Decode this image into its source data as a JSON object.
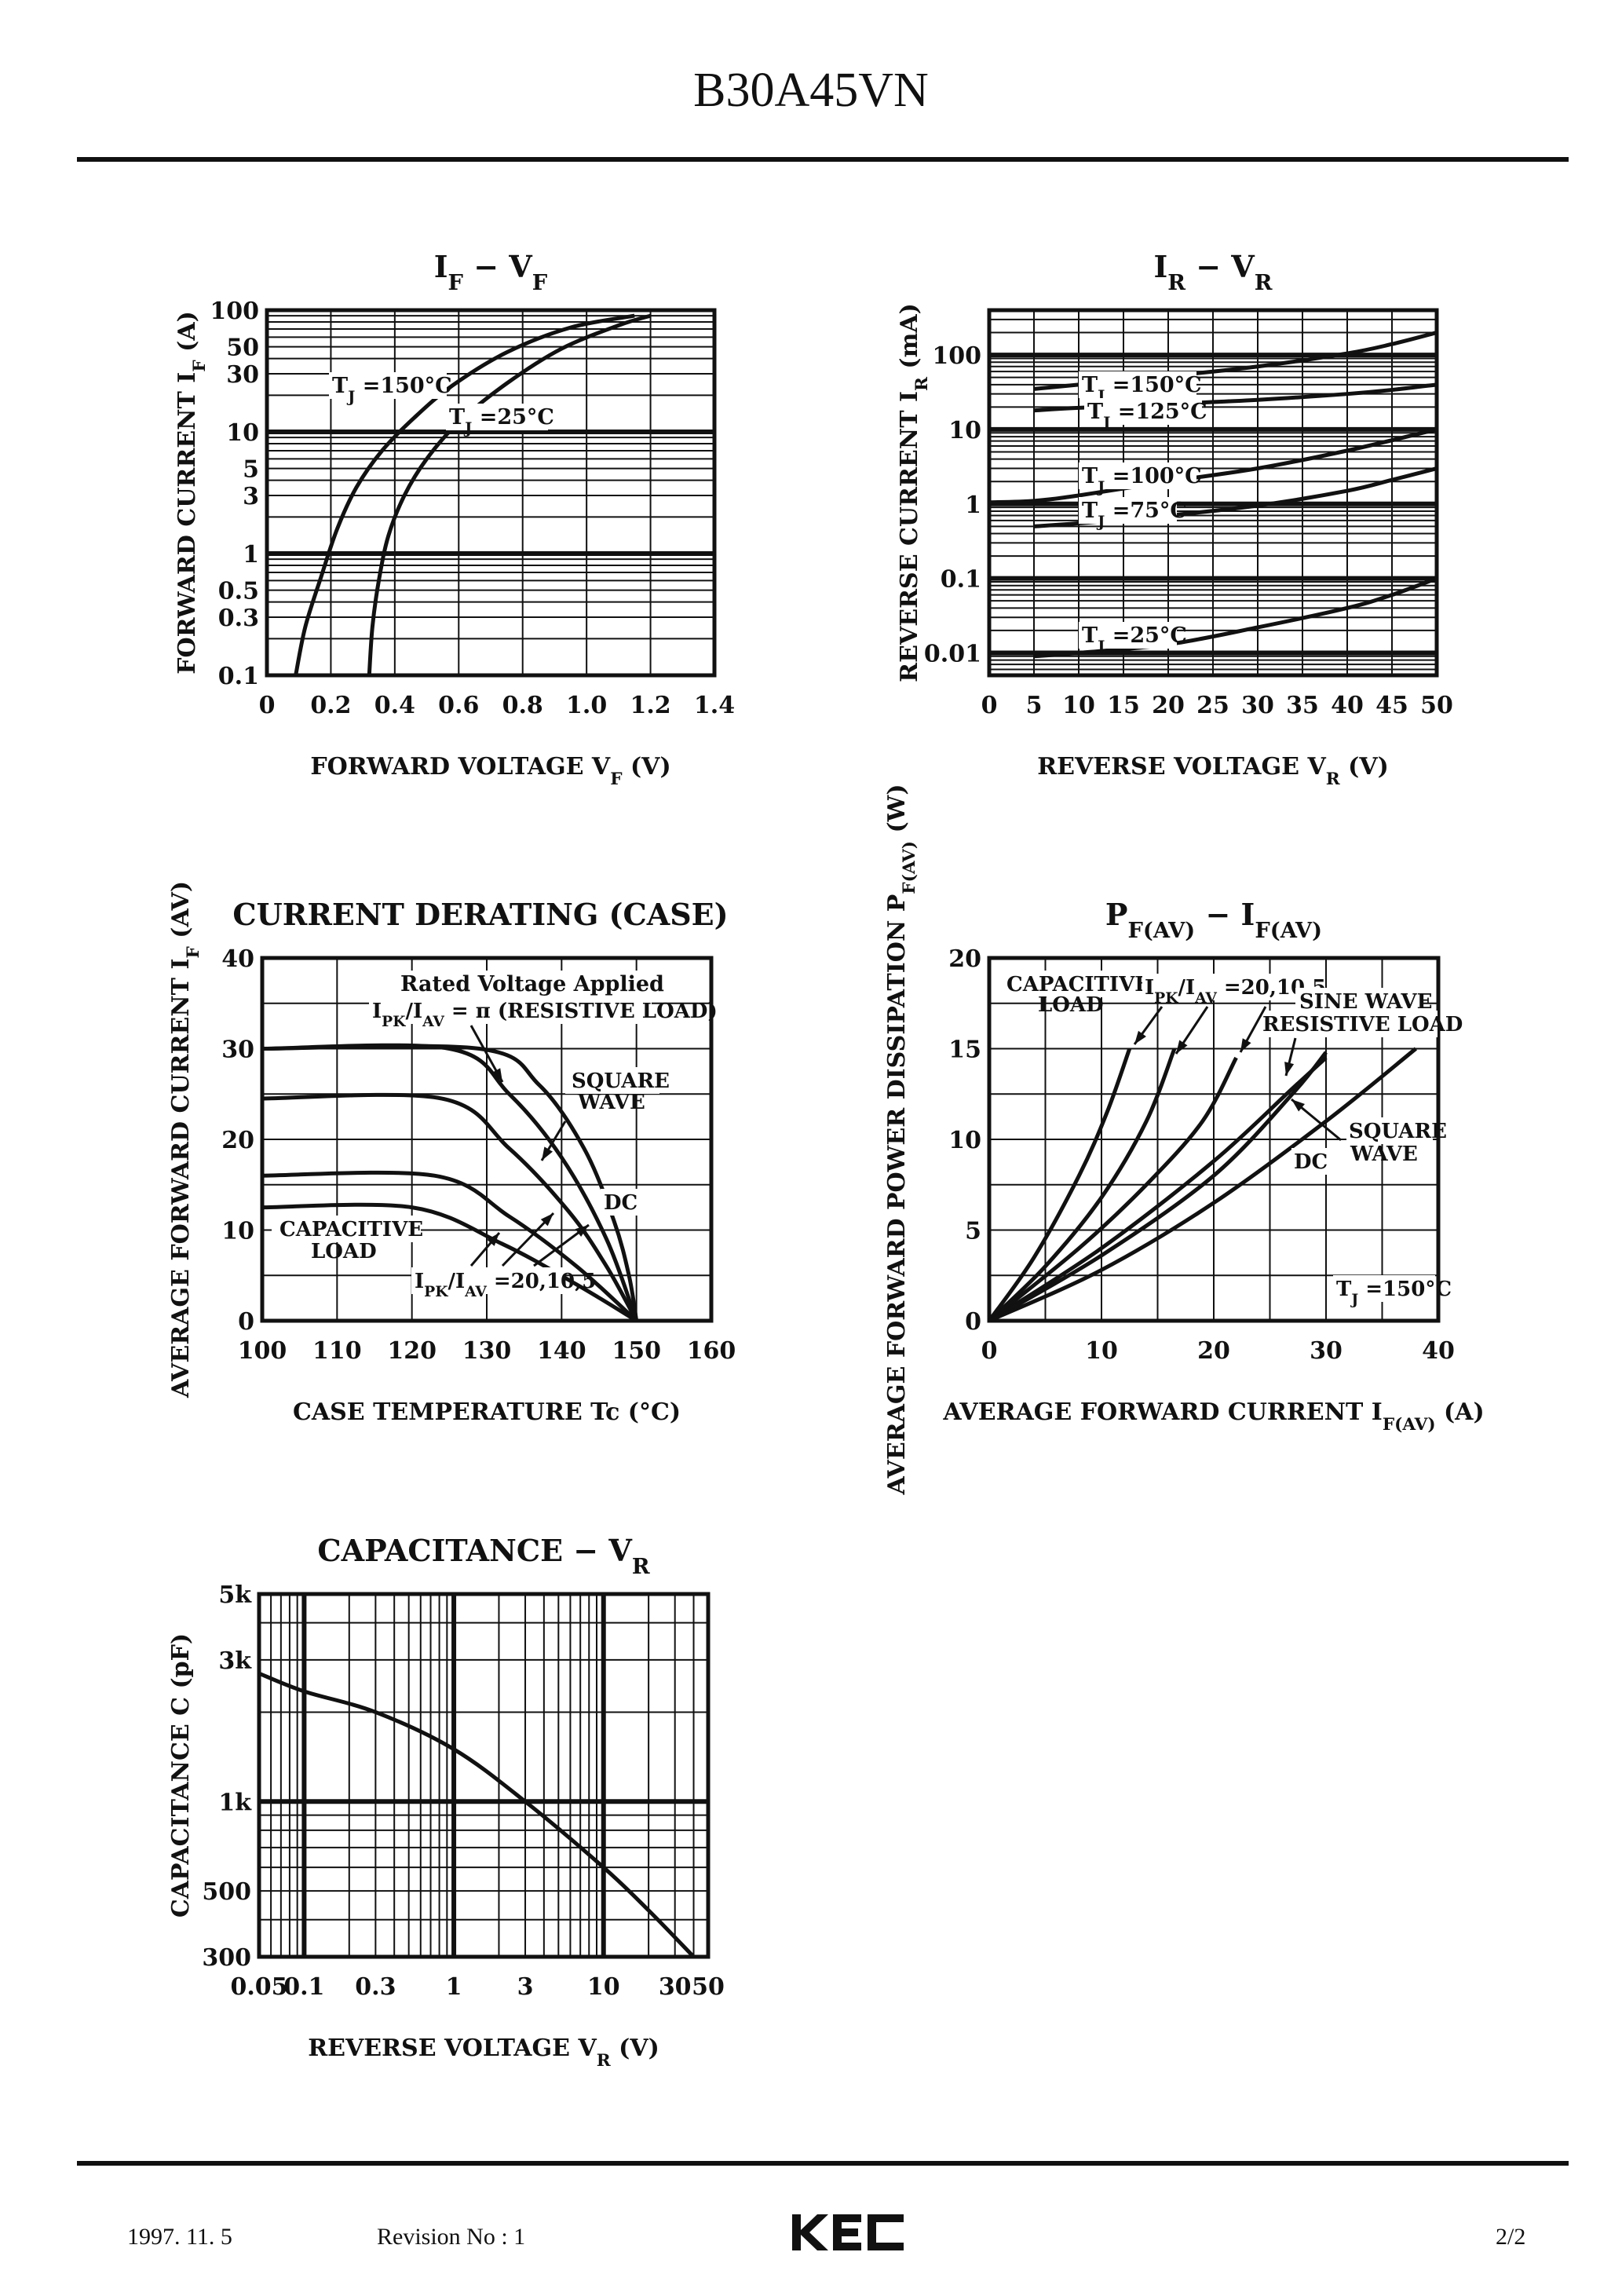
{
  "header": {
    "part_number": "B30A45VN"
  },
  "footer": {
    "date": "1997. 11. 5",
    "revision": "Revision No : 1",
    "logo_text": "KEC",
    "page": "2/2"
  },
  "chart_data": [
    {
      "type": "line",
      "title": "I_F  −  V_F",
      "xlabel": "FORWARD VOLTAGE V_F (V)",
      "ylabel": "FORWARD CURRENT I_F (A)",
      "xlim": [
        0,
        1.4
      ],
      "ylim": [
        0.1,
        100
      ],
      "yscale": "log",
      "x_ticks": [
        "0",
        "0.2",
        "0.4",
        "0.6",
        "0.8",
        "1.0",
        "1.2",
        "1.4"
      ],
      "y_ticks": [
        "0.1",
        "0.3",
        "0.5",
        "1",
        "3",
        "5",
        "10",
        "30",
        "50",
        "100"
      ],
      "series": [
        {
          "name": "T_J =150°C",
          "points": [
            [
              0.09,
              0.1
            ],
            [
              0.12,
              0.25
            ],
            [
              0.17,
              0.65
            ],
            [
              0.22,
              1.6
            ],
            [
              0.28,
              3.5
            ],
            [
              0.36,
              7
            ],
            [
              0.46,
              13
            ],
            [
              0.58,
              24
            ],
            [
              0.75,
              45
            ],
            [
              0.95,
              72
            ],
            [
              1.15,
              90
            ]
          ]
        },
        {
          "name": "T_J =25°C",
          "points": [
            [
              0.32,
              0.1
            ],
            [
              0.33,
              0.25
            ],
            [
              0.35,
              0.6
            ],
            [
              0.38,
              1.4
            ],
            [
              0.43,
              3
            ],
            [
              0.5,
              6
            ],
            [
              0.6,
              12
            ],
            [
              0.75,
              25
            ],
            [
              0.92,
              48
            ],
            [
              1.1,
              75
            ],
            [
              1.2,
              90
            ]
          ]
        }
      ]
    },
    {
      "type": "line",
      "title": "I_R  −  V_R",
      "xlabel": "REVERSE VOLTAGE V_R (V)",
      "ylabel": "REVERSE CURRENT I_R (mA)",
      "xlim": [
        0,
        50
      ],
      "ylim": [
        0.005,
        400
      ],
      "yscale": "log",
      "x_ticks": [
        "0",
        "5",
        "10",
        "15",
        "20",
        "25",
        "30",
        "35",
        "40",
        "45",
        "50"
      ],
      "y_ticks": [
        "0.01",
        "0.1",
        "1",
        "10",
        "100"
      ],
      "series": [
        {
          "name": "T_J =150°C",
          "points": [
            [
              5,
              35
            ],
            [
              10,
              40
            ],
            [
              20,
              52
            ],
            [
              30,
              70
            ],
            [
              40,
              105
            ],
            [
              45,
              140
            ],
            [
              50,
              200
            ]
          ]
        },
        {
          "name": "T_J =125°C",
          "points": [
            [
              5,
              18
            ],
            [
              10,
              19.5
            ],
            [
              20,
              22
            ],
            [
              30,
              25
            ],
            [
              40,
              30
            ],
            [
              45,
              34
            ],
            [
              50,
              40
            ]
          ]
        },
        {
          "name": "T_J =100°C",
          "points": [
            [
              0,
              1.05
            ],
            [
              5,
              1.1
            ],
            [
              10,
              1.3
            ],
            [
              20,
              2
            ],
            [
              30,
              3
            ],
            [
              40,
              5.2
            ],
            [
              50,
              10
            ]
          ]
        },
        {
          "name": "T_J =75°C",
          "points": [
            [
              5,
              0.5
            ],
            [
              10,
              0.55
            ],
            [
              20,
              0.7
            ],
            [
              30,
              0.95
            ],
            [
              40,
              1.5
            ],
            [
              45,
              2.1
            ],
            [
              50,
              3
            ]
          ]
        },
        {
          "name": "T_J =25°C",
          "points": [
            [
              5,
              0.009
            ],
            [
              10,
              0.01
            ],
            [
              20,
              0.013
            ],
            [
              30,
              0.022
            ],
            [
              40,
              0.04
            ],
            [
              45,
              0.06
            ],
            [
              50,
              0.1
            ]
          ]
        }
      ]
    },
    {
      "type": "line",
      "title": "CURRENT DERATING (CASE)",
      "xlabel": "CASE TEMPERATURE Tc (°C)",
      "ylabel": "AVERAGE FORWARD CURRENT I_F (AV)",
      "xlim": [
        100,
        160
      ],
      "ylim": [
        0,
        40
      ],
      "x_ticks": [
        "100",
        "110",
        "120",
        "130",
        "140",
        "150",
        "160"
      ],
      "y_ticks": [
        "0",
        "10",
        "20",
        "30",
        "40"
      ],
      "annotations": [
        "Rated Voltage Applied",
        "I_PK/I_AV = π (RESISTIVE LOAD)",
        "SQUARE WAVE",
        "DC",
        "CAPACITIVE LOAD",
        "I_PK/I_AV =20,10,5"
      ],
      "series": [
        {
          "points": [
            [
              100,
              30
            ],
            [
              129,
              30
            ],
            [
              137,
              26
            ],
            [
              143,
              19
            ],
            [
              147,
              11
            ],
            [
              149,
              5
            ],
            [
              150,
              0
            ]
          ]
        },
        {
          "points": [
            [
              100,
              30
            ],
            [
              125,
              30
            ],
            [
              133,
              25
            ],
            [
              140,
              18
            ],
            [
              146,
              9
            ],
            [
              150,
              0
            ]
          ]
        },
        {
          "points": [
            [
              100,
              24.5
            ],
            [
              124,
              24.5
            ],
            [
              133,
              19
            ],
            [
              141,
              12
            ],
            [
              146,
              6
            ],
            [
              150,
              0
            ]
          ]
        },
        {
          "points": [
            [
              100,
              16
            ],
            [
              123,
              16
            ],
            [
              133,
              11.5
            ],
            [
              142,
              6
            ],
            [
              150,
              0
            ]
          ]
        },
        {
          "points": [
            [
              100,
              12.5
            ],
            [
              120,
              12.5
            ],
            [
              132,
              8.5
            ],
            [
              142,
              4
            ],
            [
              150,
              0
            ]
          ]
        }
      ]
    },
    {
      "type": "line",
      "title": "P_F(AV)  −  I_F(AV)",
      "xlabel": "AVERAGE FORWARD CURRENT I_F(AV) (A)",
      "ylabel": "AVERAGE FORWARD POWER DISSIPATION P_F(AV) (W)",
      "xlim": [
        0,
        40
      ],
      "ylim": [
        0,
        20
      ],
      "x_ticks": [
        "0",
        "10",
        "20",
        "30",
        "40"
      ],
      "y_ticks": [
        "0",
        "5",
        "10",
        "15",
        "20"
      ],
      "annotations": [
        "CAPACITIVE LOAD",
        "I_PK/I_AV =20,10,5",
        "SINE WAVE",
        "RESISTIVE LOAD",
        "SQUARE WAVE",
        "DC",
        "T_J =150°C"
      ],
      "series": [
        {
          "points": [
            [
              0,
              0
            ],
            [
              4,
              3.5
            ],
            [
              8,
              8
            ],
            [
              10.5,
              11.5
            ],
            [
              12.5,
              15
            ]
          ]
        },
        {
          "points": [
            [
              0,
              0
            ],
            [
              5,
              3
            ],
            [
              10,
              6.8
            ],
            [
              14,
              11
            ],
            [
              16.5,
              15
            ]
          ]
        },
        {
          "points": [
            [
              0,
              0
            ],
            [
              8,
              4
            ],
            [
              14,
              7.5
            ],
            [
              19,
              11
            ],
            [
              22,
              14.5
            ]
          ]
        },
        {
          "points": [
            [
              0,
              0
            ],
            [
              10,
              4
            ],
            [
              20,
              8.8
            ],
            [
              27,
              12.8
            ],
            [
              30,
              14.5
            ]
          ]
        },
        {
          "points": [
            [
              0,
              0
            ],
            [
              10,
              3.6
            ],
            [
              20,
              8
            ],
            [
              27,
              12.5
            ],
            [
              30,
              14.8
            ]
          ]
        },
        {
          "points": [
            [
              0,
              0
            ],
            [
              10,
              2.8
            ],
            [
              20,
              6.5
            ],
            [
              30,
              11
            ],
            [
              38,
              15
            ]
          ]
        }
      ]
    },
    {
      "type": "line",
      "title": "CAPACITANCE  −  V_R",
      "xlabel": "REVERSE VOLTAGE V_R (V)",
      "ylabel": "CAPACITANCE C (pF)",
      "xlim": [
        0.05,
        50
      ],
      "ylim": [
        300,
        5000
      ],
      "xscale": "log",
      "yscale": "log",
      "x_ticks": [
        "0.05",
        "0.1",
        "0.3",
        "1",
        "3",
        "10",
        "30",
        "50"
      ],
      "y_ticks": [
        "300",
        "500",
        "1k",
        "3k",
        "5k"
      ],
      "series": [
        {
          "points": [
            [
              0.05,
              2700
            ],
            [
              0.1,
              2350
            ],
            [
              0.3,
              2000
            ],
            [
              1,
              1500
            ],
            [
              3,
              1000
            ],
            [
              10,
              600
            ],
            [
              20,
              430
            ],
            [
              40,
              300
            ]
          ]
        }
      ]
    }
  ]
}
